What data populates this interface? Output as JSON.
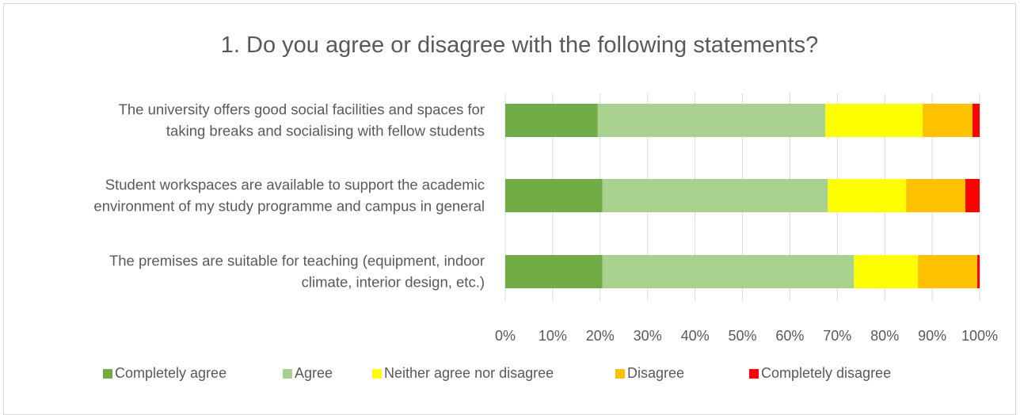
{
  "chart_data": {
    "type": "bar",
    "orientation": "horizontal",
    "stacked": "percent",
    "title": "1. Do you agree or disagree with the following statements?",
    "categories": [
      [
        "The university offers good social facilities and spaces for",
        "taking breaks and socialising with fellow students"
      ],
      [
        "Student workspaces are available to support the academic",
        "environment of my study programme and campus in general"
      ],
      [
        "The premises are suitable for teaching (equipment, indoor",
        "climate, interior design, etc.)"
      ]
    ],
    "series": [
      {
        "name": "Completely agree",
        "color": "#70ad47",
        "values": [
          19.5,
          20.5,
          20.5
        ]
      },
      {
        "name": "Agree",
        "color": "#a9d18e",
        "values": [
          48,
          47.5,
          53
        ]
      },
      {
        "name": "Neither agree nor disagree",
        "color": "#ffff00",
        "values": [
          20.5,
          16.5,
          13.5
        ]
      },
      {
        "name": "Disagree",
        "color": "#ffc000",
        "values": [
          10.5,
          12.5,
          12.5
        ]
      },
      {
        "name": "Completely disagree",
        "color": "#ff0000",
        "values": [
          1.5,
          3,
          0.5
        ]
      }
    ],
    "xlim": [
      0,
      100
    ],
    "xticks": [
      "0%",
      "10%",
      "20%",
      "30%",
      "40%",
      "50%",
      "60%",
      "70%",
      "80%",
      "90%",
      "100%"
    ],
    "grid": true,
    "legend_position": "bottom"
  }
}
